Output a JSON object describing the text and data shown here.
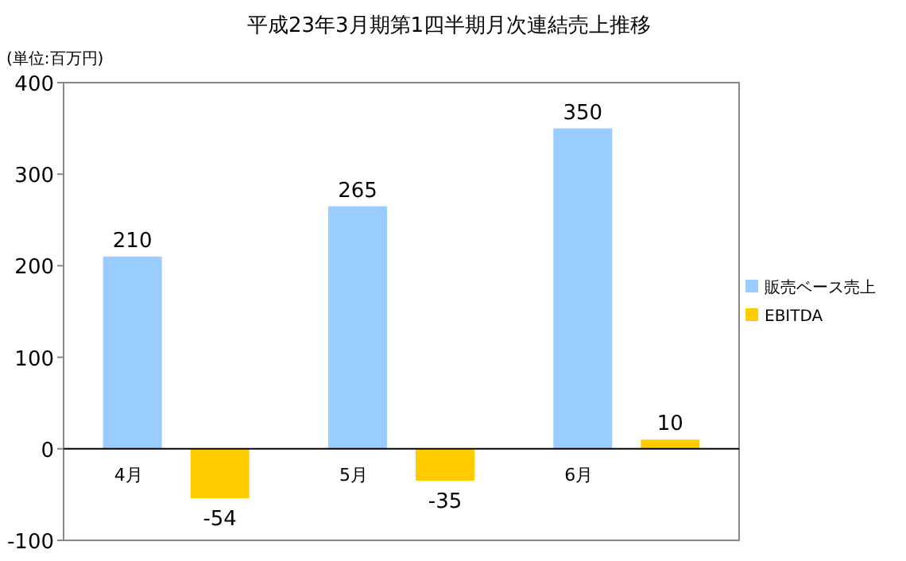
{
  "chart_data": {
    "type": "bar",
    "title": "平成23年3月期第1四半期月次連結売上推移",
    "annotations": [
      "(単位:百万円)"
    ],
    "categories": [
      "4月",
      "5月",
      "6月"
    ],
    "series": [
      {
        "name": "販売ベース売上",
        "color": "#99ccff",
        "values": [
          210,
          265,
          350
        ]
      },
      {
        "name": "EBITDA",
        "color": "#ffcc00",
        "values": [
          -54,
          -35,
          10
        ]
      }
    ],
    "ylim": [
      -100,
      400
    ],
    "yticks": [
      -100,
      0,
      100,
      200,
      300,
      400
    ],
    "data_labels": true,
    "legend": "right"
  }
}
